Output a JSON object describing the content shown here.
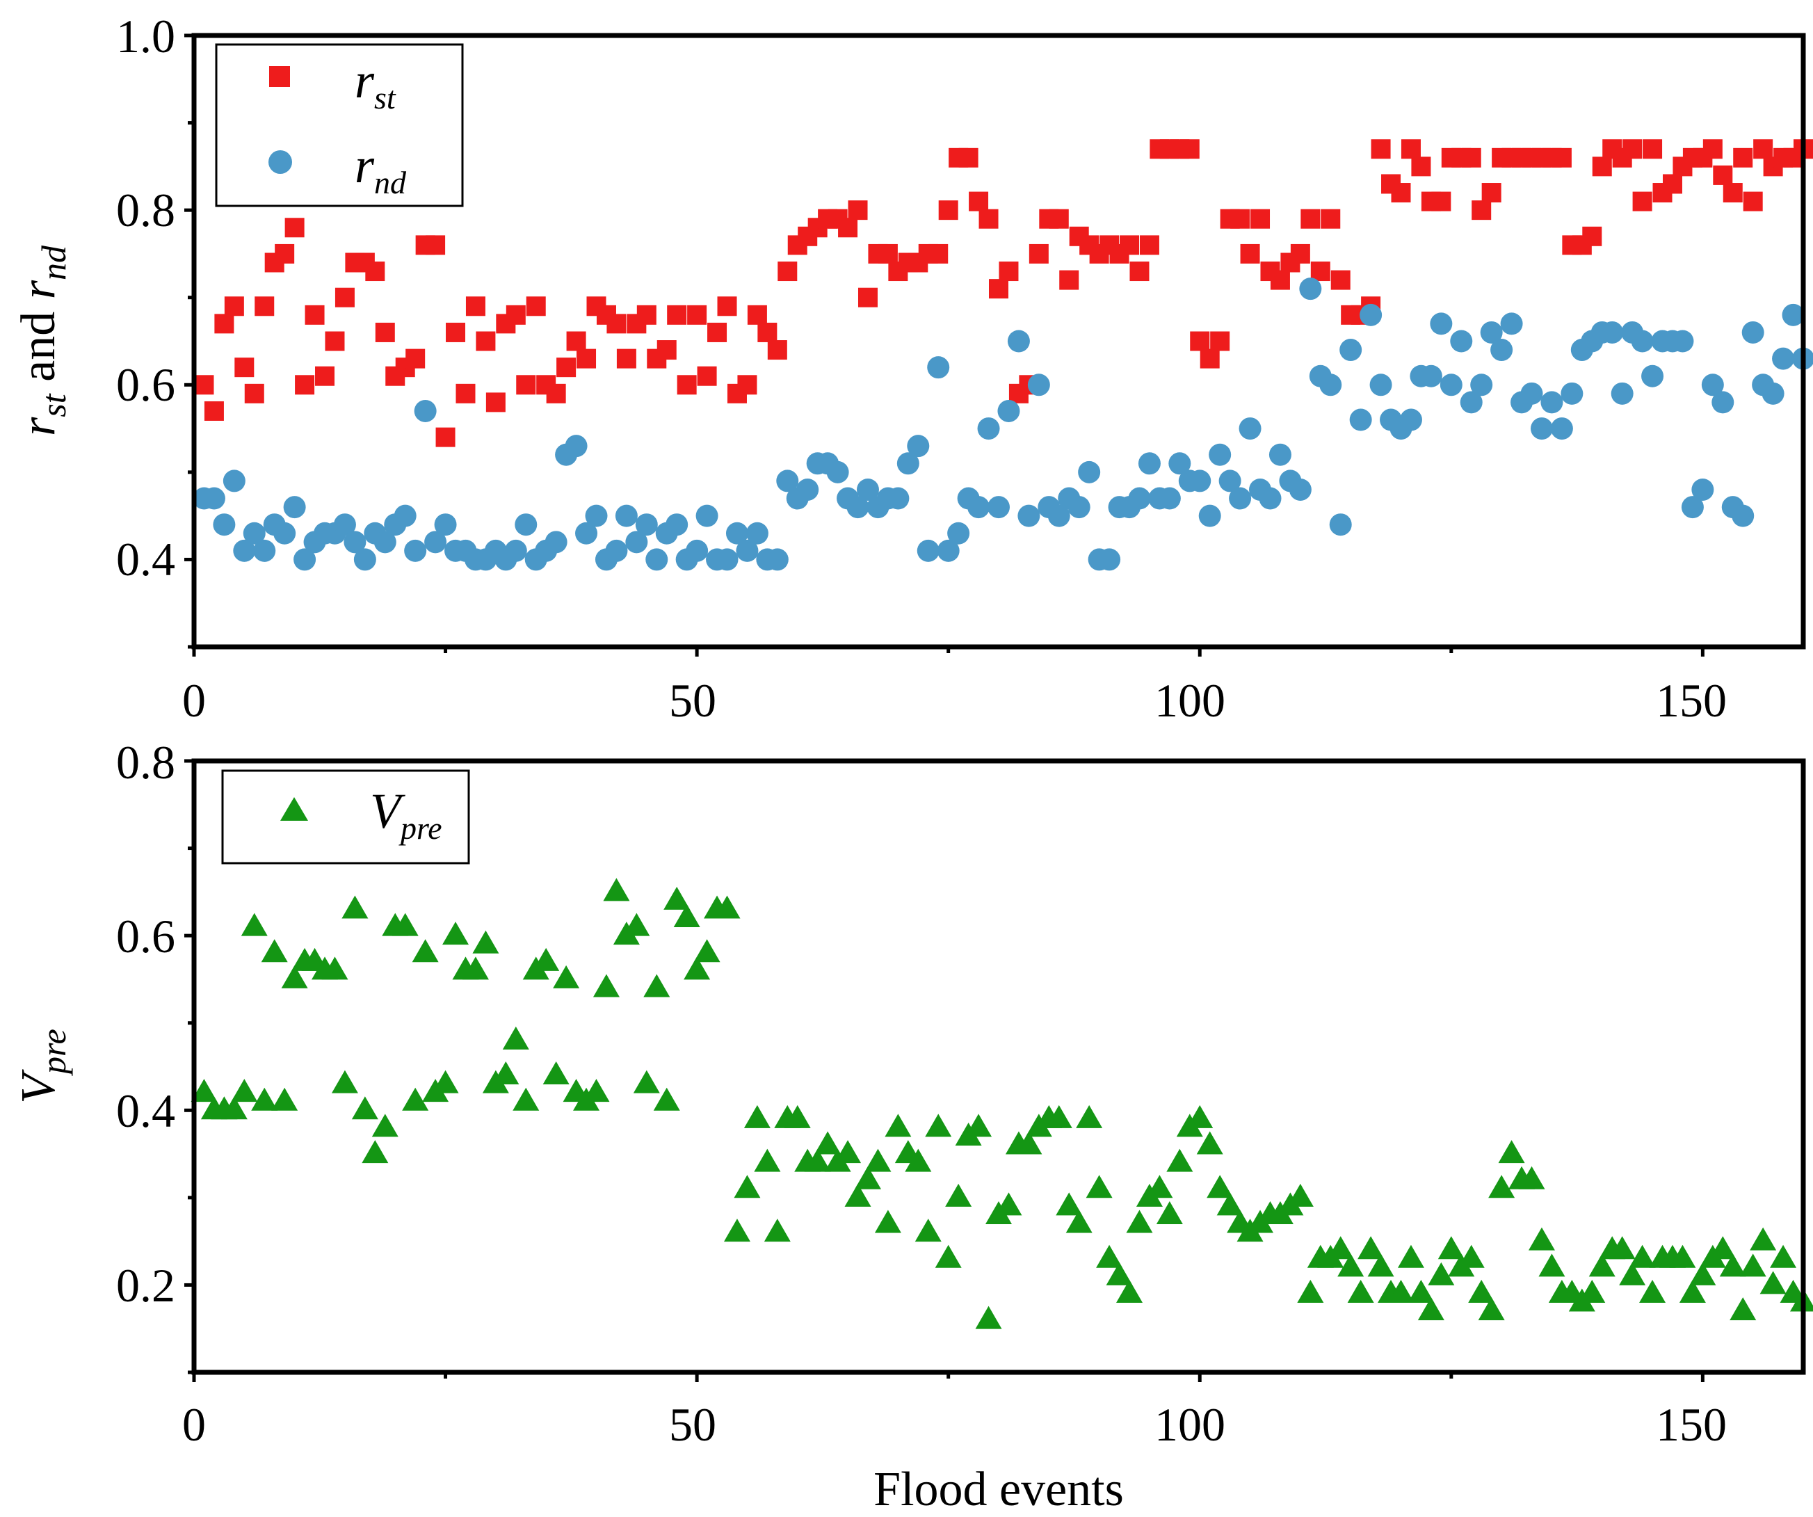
{
  "colors": {
    "rst": "#ee1c1c",
    "rnd": "#4a98c8",
    "vpre": "#149614",
    "axis": "#000000"
  },
  "chart_data": [
    {
      "type": "scatter",
      "panel": "top",
      "xlabel": "",
      "ylabel": {
        "main_1": "r",
        "sub_1": "st",
        "middle": " and ",
        "main_2": "r",
        "sub_2": "nd"
      },
      "xlim": [
        0,
        160
      ],
      "ylim": [
        0.3,
        1.0
      ],
      "xticks": [
        0,
        50,
        100,
        150
      ],
      "yticks": [
        0.4,
        0.6,
        0.8,
        1.0
      ],
      "xtick_labels": [
        "0",
        "50",
        "100",
        "150"
      ],
      "ytick_labels": [
        "0.4",
        "0.6",
        "0.8",
        "1.0"
      ],
      "legend": {
        "location": "top-left",
        "entries": [
          {
            "main": "r",
            "sub": "st",
            "marker": "square"
          },
          {
            "main": "r",
            "sub": "nd",
            "marker": "circle"
          }
        ]
      },
      "series": [
        {
          "name": "r_st",
          "marker": "square",
          "x": [
            1,
            2,
            3,
            4,
            5,
            6,
            7,
            8,
            9,
            10,
            11,
            12,
            13,
            14,
            15,
            16,
            17,
            18,
            19,
            20,
            21,
            22,
            23,
            24,
            25,
            26,
            27,
            28,
            29,
            30,
            31,
            32,
            33,
            34,
            35,
            36,
            37,
            38,
            39,
            40,
            41,
            42,
            43,
            44,
            45,
            46,
            47,
            48,
            49,
            50,
            51,
            52,
            53,
            54,
            55,
            56,
            57,
            58,
            59,
            60,
            61,
            62,
            63,
            64,
            65,
            66,
            67,
            68,
            69,
            70,
            71,
            72,
            73,
            74,
            75,
            76,
            77,
            78,
            79,
            80,
            81,
            82,
            83,
            84,
            85,
            86,
            87,
            88,
            89,
            90,
            91,
            92,
            93,
            94,
            95,
            96,
            97,
            98,
            99,
            100,
            101,
            102,
            103,
            104,
            105,
            106,
            107,
            108,
            109,
            110,
            111,
            112,
            113,
            114,
            115,
            116,
            117,
            118,
            119,
            120,
            121,
            122,
            123,
            124,
            125,
            126,
            127,
            128,
            129,
            130,
            131,
            132,
            133,
            134,
            135,
            136,
            137,
            138,
            139,
            140,
            141,
            142,
            143,
            144,
            145,
            146,
            147,
            148,
            149,
            150,
            151,
            152,
            153,
            154,
            155,
            156,
            157,
            158,
            159,
            160
          ],
          "y": [
            0.6,
            0.57,
            0.67,
            0.69,
            0.62,
            0.59,
            0.69,
            0.74,
            0.75,
            0.78,
            0.6,
            0.68,
            0.61,
            0.65,
            0.7,
            0.74,
            0.74,
            0.73,
            0.66,
            0.61,
            0.62,
            0.63,
            0.76,
            0.76,
            0.54,
            0.66,
            0.59,
            0.69,
            0.65,
            0.58,
            0.67,
            0.68,
            0.6,
            0.69,
            0.6,
            0.59,
            0.62,
            0.65,
            0.63,
            0.69,
            0.68,
            0.67,
            0.63,
            0.67,
            0.68,
            0.63,
            0.64,
            0.68,
            0.6,
            0.68,
            0.61,
            0.66,
            0.69,
            0.59,
            0.6,
            0.68,
            0.66,
            0.64,
            0.73,
            0.76,
            0.77,
            0.78,
            0.79,
            0.79,
            0.78,
            0.8,
            0.7,
            0.75,
            0.75,
            0.73,
            0.74,
            0.74,
            0.75,
            0.75,
            0.8,
            0.86,
            0.86,
            0.81,
            0.79,
            0.71,
            0.73,
            0.59,
            0.6,
            0.75,
            0.79,
            0.79,
            0.72,
            0.77,
            0.76,
            0.75,
            0.76,
            0.75,
            0.76,
            0.73,
            0.76,
            0.87,
            0.87,
            0.87,
            0.87,
            0.65,
            0.63,
            0.65,
            0.79,
            0.79,
            0.75,
            0.79,
            0.73,
            0.72,
            0.74,
            0.75,
            0.79,
            0.73,
            0.79,
            0.72,
            0.68,
            0.68,
            0.69,
            0.87,
            0.83,
            0.82,
            0.87,
            0.85,
            0.81,
            0.81,
            0.86,
            0.86,
            0.86,
            0.8,
            0.82,
            0.86,
            0.86,
            0.86,
            0.86,
            0.86,
            0.86,
            0.86,
            0.76,
            0.76,
            0.77,
            0.85,
            0.87,
            0.86,
            0.87,
            0.81,
            0.87,
            0.82,
            0.83,
            0.85,
            0.86,
            0.86,
            0.87,
            0.84,
            0.82,
            0.86,
            0.81,
            0.87,
            0.85,
            0.86,
            0.86,
            0.87
          ]
        },
        {
          "name": "r_nd",
          "marker": "circle",
          "x": [
            1,
            2,
            3,
            4,
            5,
            6,
            7,
            8,
            9,
            10,
            11,
            12,
            13,
            14,
            15,
            16,
            17,
            18,
            19,
            20,
            21,
            22,
            23,
            24,
            25,
            26,
            27,
            28,
            29,
            30,
            31,
            32,
            33,
            34,
            35,
            36,
            37,
            38,
            39,
            40,
            41,
            42,
            43,
            44,
            45,
            46,
            47,
            48,
            49,
            50,
            51,
            52,
            53,
            54,
            55,
            56,
            57,
            58,
            59,
            60,
            61,
            62,
            63,
            64,
            65,
            66,
            67,
            68,
            69,
            70,
            71,
            72,
            73,
            74,
            75,
            76,
            77,
            78,
            79,
            80,
            81,
            82,
            83,
            84,
            85,
            86,
            87,
            88,
            89,
            90,
            91,
            92,
            93,
            94,
            95,
            96,
            97,
            98,
            99,
            100,
            101,
            102,
            103,
            104,
            105,
            106,
            107,
            108,
            109,
            110,
            111,
            112,
            113,
            114,
            115,
            116,
            117,
            118,
            119,
            120,
            121,
            122,
            123,
            124,
            125,
            126,
            127,
            128,
            129,
            130,
            131,
            132,
            133,
            134,
            135,
            136,
            137,
            138,
            139,
            140,
            141,
            142,
            143,
            144,
            145,
            146,
            147,
            148,
            149,
            150,
            151,
            152,
            153,
            154,
            155,
            156,
            157,
            158,
            159,
            160
          ],
          "y": [
            0.47,
            0.47,
            0.44,
            0.49,
            0.41,
            0.43,
            0.41,
            0.44,
            0.43,
            0.46,
            0.4,
            0.42,
            0.43,
            0.43,
            0.44,
            0.42,
            0.4,
            0.43,
            0.42,
            0.44,
            0.45,
            0.41,
            0.57,
            0.42,
            0.44,
            0.41,
            0.41,
            0.4,
            0.4,
            0.41,
            0.4,
            0.41,
            0.44,
            0.4,
            0.41,
            0.42,
            0.52,
            0.53,
            0.43,
            0.45,
            0.4,
            0.41,
            0.45,
            0.42,
            0.44,
            0.4,
            0.43,
            0.44,
            0.4,
            0.41,
            0.45,
            0.4,
            0.4,
            0.43,
            0.41,
            0.43,
            0.4,
            0.4,
            0.49,
            0.47,
            0.48,
            0.51,
            0.51,
            0.5,
            0.47,
            0.46,
            0.48,
            0.46,
            0.47,
            0.47,
            0.51,
            0.53,
            0.41,
            0.62,
            0.41,
            0.43,
            0.47,
            0.46,
            0.55,
            0.46,
            0.57,
            0.65,
            0.45,
            0.6,
            0.46,
            0.45,
            0.47,
            0.46,
            0.5,
            0.4,
            0.4,
            0.46,
            0.46,
            0.47,
            0.51,
            0.47,
            0.47,
            0.51,
            0.49,
            0.49,
            0.45,
            0.52,
            0.49,
            0.47,
            0.55,
            0.48,
            0.47,
            0.52,
            0.49,
            0.48,
            0.71,
            0.61,
            0.6,
            0.44,
            0.64,
            0.56,
            0.68,
            0.6,
            0.56,
            0.55,
            0.56,
            0.61,
            0.61,
            0.67,
            0.6,
            0.65,
            0.58,
            0.6,
            0.66,
            0.64,
            0.67,
            0.58,
            0.59,
            0.55,
            0.58,
            0.55,
            0.59,
            0.64,
            0.65,
            0.66,
            0.66,
            0.59,
            0.66,
            0.65,
            0.61,
            0.65,
            0.65,
            0.65,
            0.46,
            0.48,
            0.6,
            0.58,
            0.46,
            0.45,
            0.66,
            0.6,
            0.59,
            0.63,
            0.68,
            0.63
          ]
        }
      ]
    },
    {
      "type": "scatter",
      "panel": "bottom",
      "xlabel": "Flood events",
      "ylabel": {
        "main": "V",
        "sub": "pre"
      },
      "xlim": [
        0,
        160
      ],
      "ylim": [
        0.1,
        0.8
      ],
      "xticks": [
        0,
        50,
        100,
        150
      ],
      "yticks": [
        0.2,
        0.4,
        0.6,
        0.8
      ],
      "xtick_labels": [
        "0",
        "50",
        "100",
        "150"
      ],
      "ytick_labels": [
        "0.2",
        "0.4",
        "0.6",
        "0.8"
      ],
      "legend": {
        "location": "top-left",
        "entries": [
          {
            "main": "V",
            "sub": "pre",
            "marker": "triangle"
          }
        ]
      },
      "series": [
        {
          "name": "V_pre",
          "marker": "triangle",
          "x": [
            1,
            2,
            3,
            4,
            5,
            6,
            7,
            8,
            9,
            10,
            11,
            12,
            13,
            14,
            15,
            16,
            17,
            18,
            19,
            20,
            21,
            22,
            23,
            24,
            25,
            26,
            27,
            28,
            29,
            30,
            31,
            32,
            33,
            34,
            35,
            36,
            37,
            38,
            39,
            40,
            41,
            42,
            43,
            44,
            45,
            46,
            47,
            48,
            49,
            50,
            51,
            52,
            53,
            54,
            55,
            56,
            57,
            58,
            59,
            60,
            61,
            62,
            63,
            64,
            65,
            66,
            67,
            68,
            69,
            70,
            71,
            72,
            73,
            74,
            75,
            76,
            77,
            78,
            79,
            80,
            81,
            82,
            83,
            84,
            85,
            86,
            87,
            88,
            89,
            90,
            91,
            92,
            93,
            94,
            95,
            96,
            97,
            98,
            99,
            100,
            101,
            102,
            103,
            104,
            105,
            106,
            107,
            108,
            109,
            110,
            111,
            112,
            113,
            114,
            115,
            116,
            117,
            118,
            119,
            120,
            121,
            122,
            123,
            124,
            125,
            126,
            127,
            128,
            129,
            130,
            131,
            132,
            133,
            134,
            135,
            136,
            137,
            138,
            139,
            140,
            141,
            142,
            143,
            144,
            145,
            146,
            147,
            148,
            149,
            150,
            151,
            152,
            153,
            154,
            155,
            156,
            157,
            158,
            159,
            160
          ],
          "y": [
            0.42,
            0.4,
            0.4,
            0.4,
            0.42,
            0.61,
            0.41,
            0.58,
            0.41,
            0.55,
            0.57,
            0.57,
            0.56,
            0.56,
            0.43,
            0.63,
            0.4,
            0.35,
            0.38,
            0.61,
            0.61,
            0.41,
            0.58,
            0.42,
            0.43,
            0.6,
            0.56,
            0.56,
            0.59,
            0.43,
            0.44,
            0.48,
            0.41,
            0.56,
            0.57,
            0.44,
            0.55,
            0.42,
            0.41,
            0.42,
            0.54,
            0.65,
            0.6,
            0.61,
            0.43,
            0.54,
            0.41,
            0.64,
            0.62,
            0.56,
            0.58,
            0.63,
            0.63,
            0.26,
            0.31,
            0.39,
            0.34,
            0.26,
            0.39,
            0.39,
            0.34,
            0.34,
            0.36,
            0.34,
            0.35,
            0.3,
            0.32,
            0.34,
            0.27,
            0.38,
            0.35,
            0.34,
            0.26,
            0.38,
            0.23,
            0.3,
            0.37,
            0.38,
            0.16,
            0.28,
            0.29,
            0.36,
            0.36,
            0.38,
            0.39,
            0.39,
            0.29,
            0.27,
            0.39,
            0.31,
            0.23,
            0.21,
            0.19,
            0.27,
            0.3,
            0.31,
            0.28,
            0.34,
            0.38,
            0.39,
            0.36,
            0.31,
            0.29,
            0.27,
            0.26,
            0.27,
            0.28,
            0.28,
            0.29,
            0.3,
            0.19,
            0.23,
            0.23,
            0.24,
            0.22,
            0.19,
            0.24,
            0.22,
            0.19,
            0.19,
            0.23,
            0.19,
            0.17,
            0.21,
            0.24,
            0.22,
            0.23,
            0.19,
            0.17,
            0.31,
            0.35,
            0.32,
            0.32,
            0.25,
            0.22,
            0.19,
            0.19,
            0.18,
            0.19,
            0.22,
            0.24,
            0.24,
            0.21,
            0.23,
            0.19,
            0.23,
            0.23,
            0.23,
            0.19,
            0.21,
            0.23,
            0.24,
            0.22,
            0.17,
            0.22,
            0.25,
            0.2,
            0.23,
            0.19,
            0.18
          ]
        }
      ]
    }
  ]
}
